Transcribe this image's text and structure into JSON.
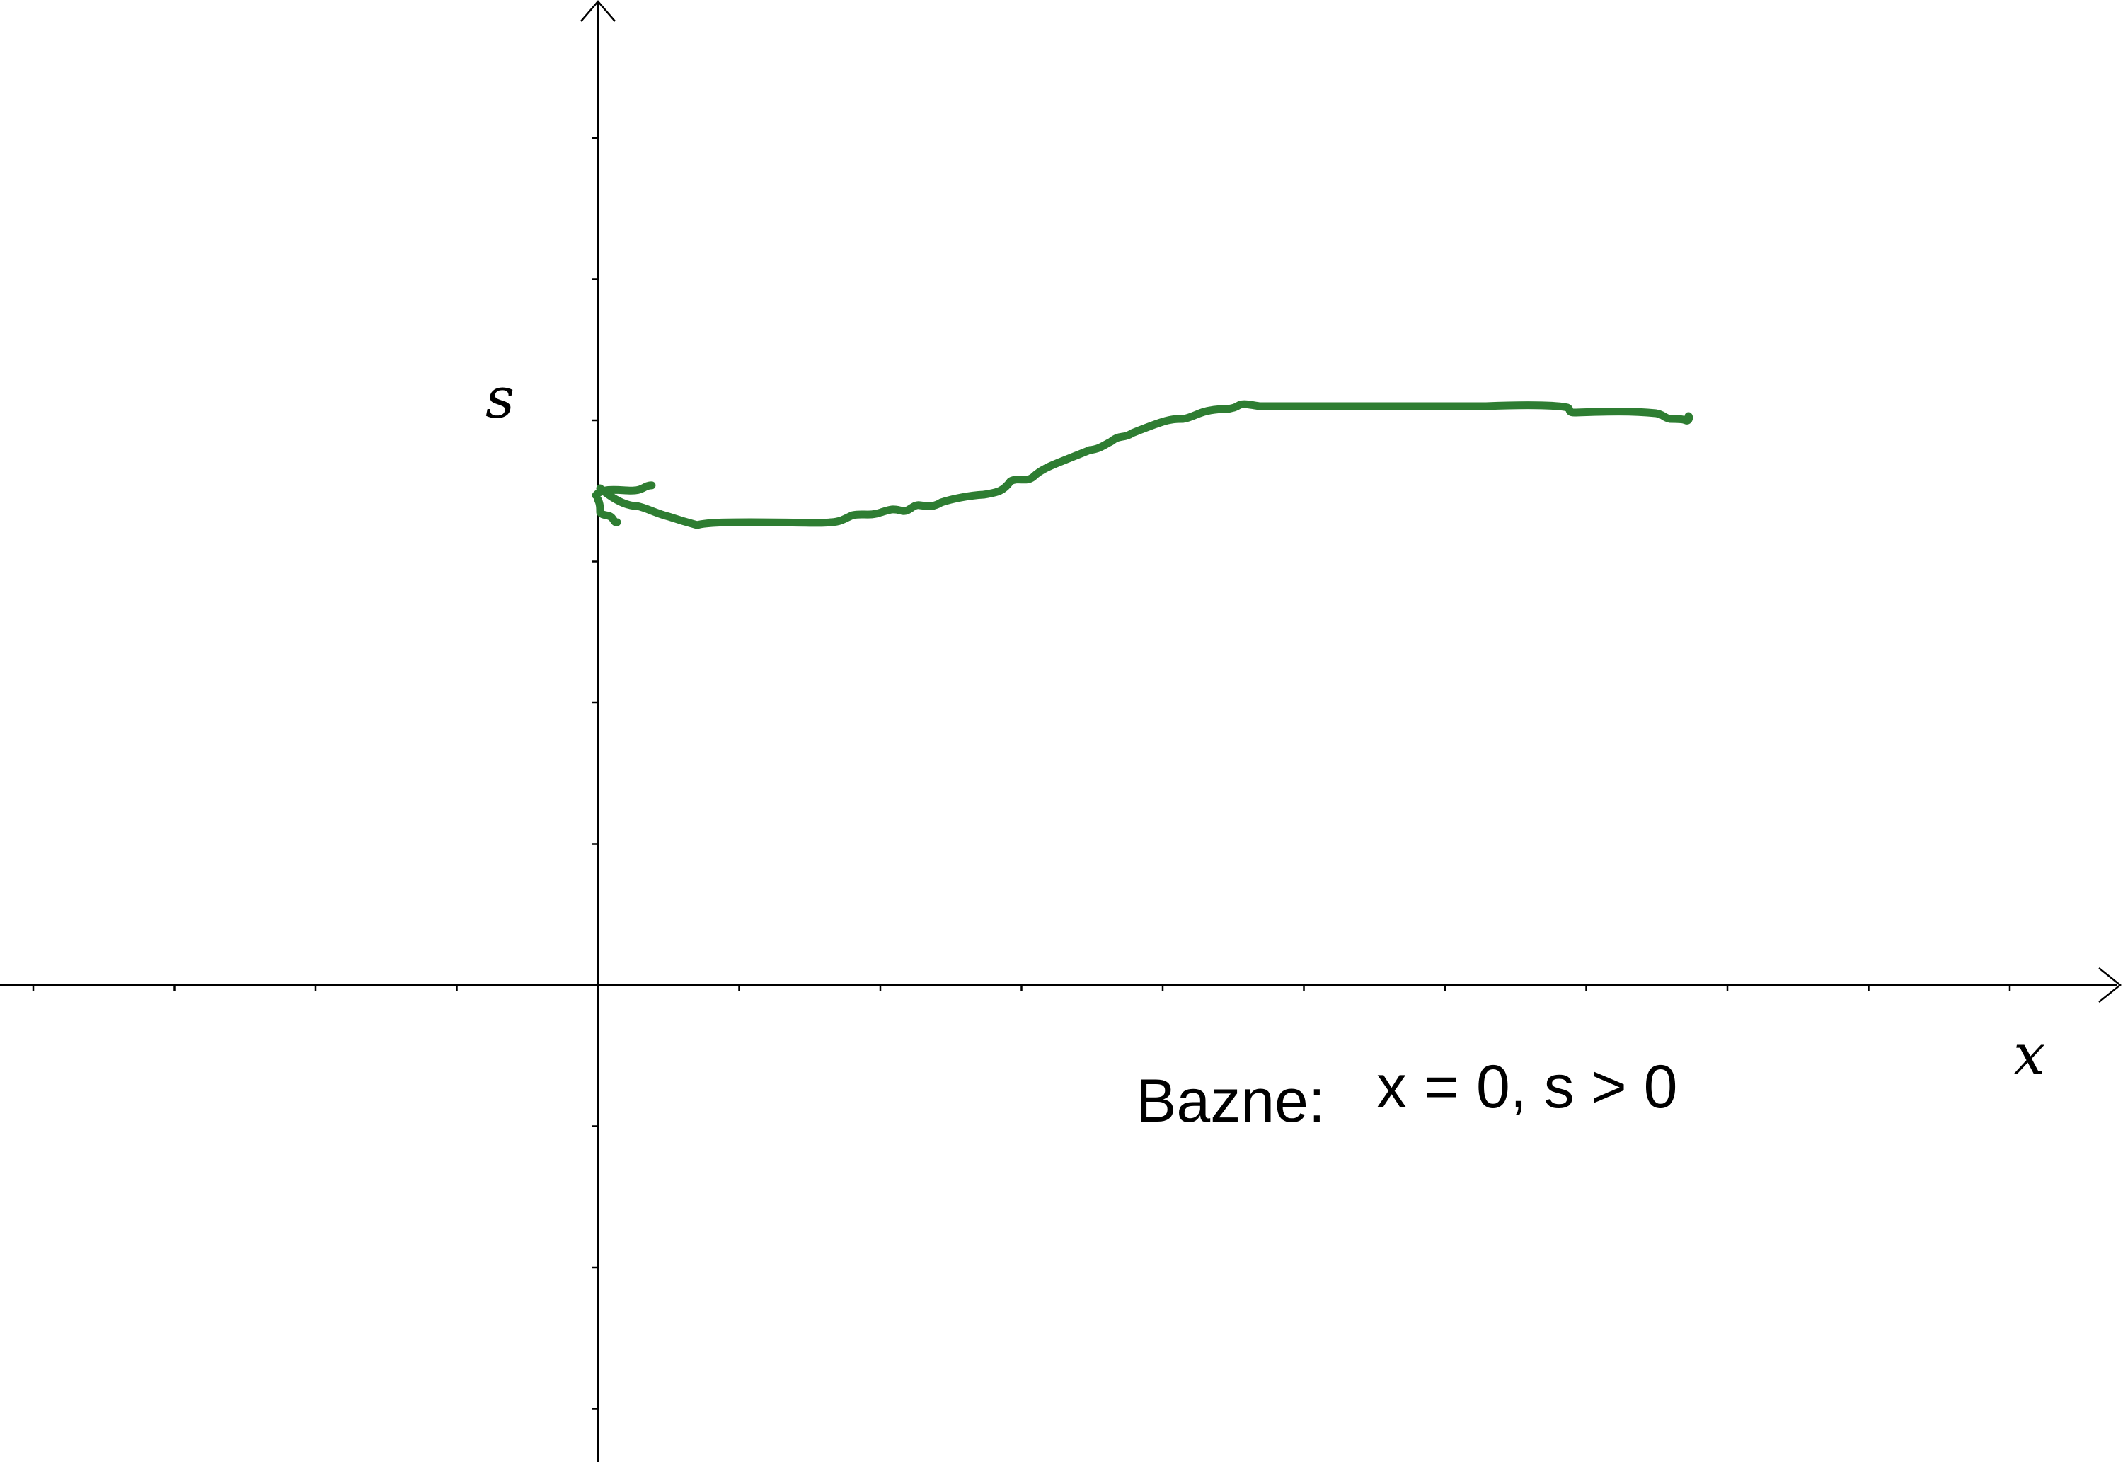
{
  "axes": {
    "x_label": "x",
    "y_label": "s",
    "axis_color": "#000000"
  },
  "caption": {
    "label": "Bazne:",
    "condition": "x = 0, s > 0"
  },
  "curve": {
    "color": "#2e7d32",
    "description_hidden": true
  }
}
